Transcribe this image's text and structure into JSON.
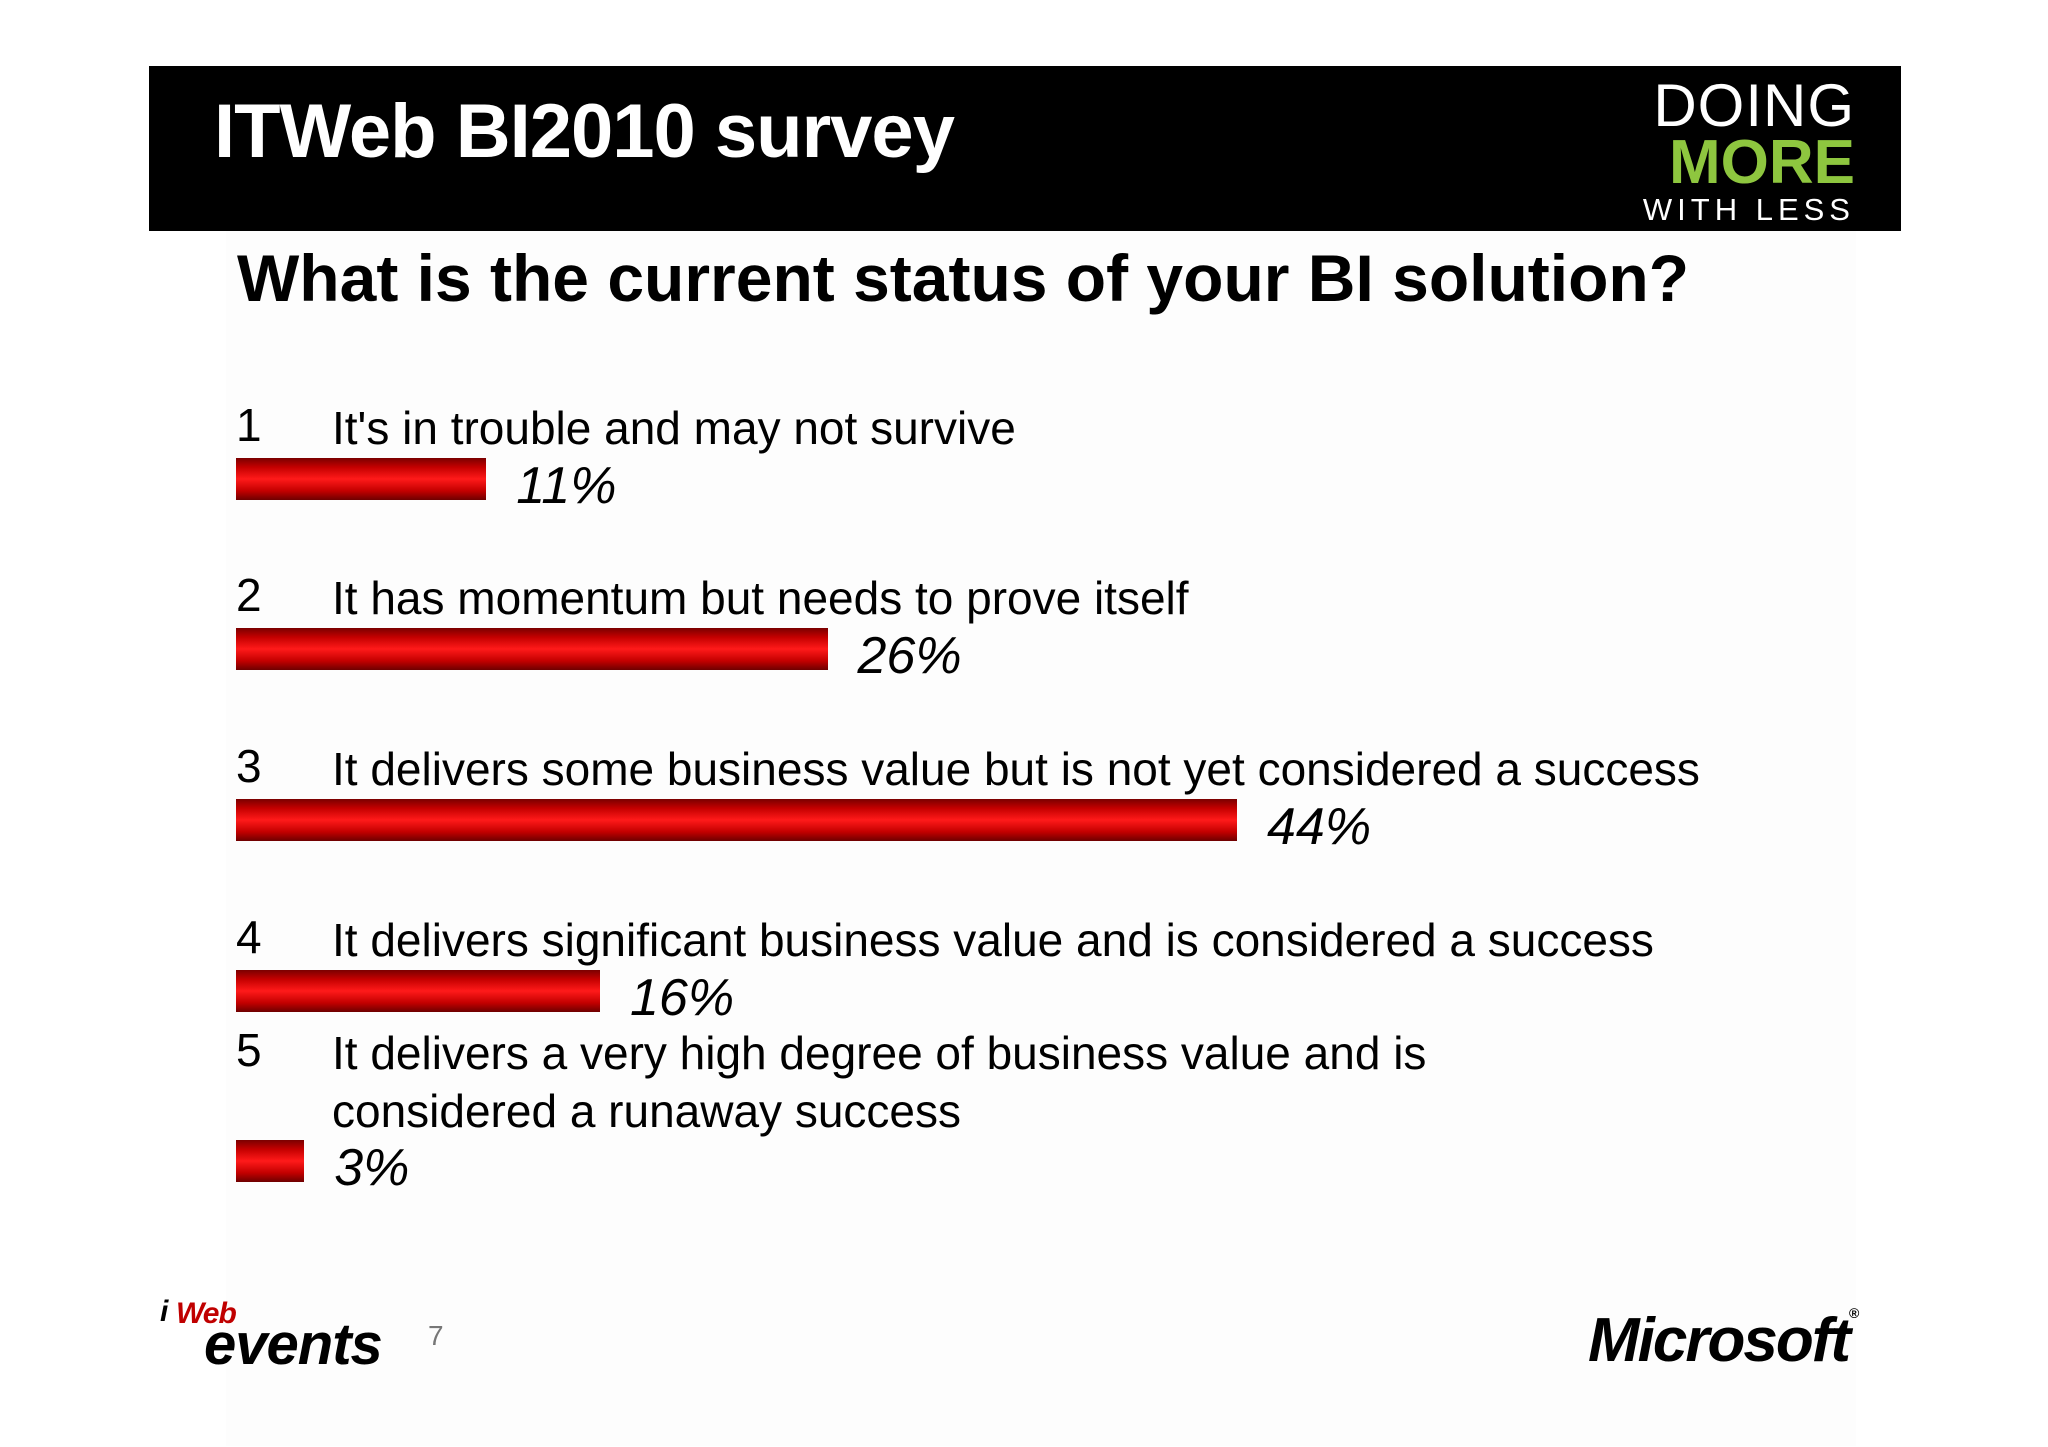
{
  "header": {
    "title": "ITWeb BI2010 survey",
    "logo": {
      "line1": "DOING",
      "line2": "MORE",
      "line3": "WITH LESS"
    }
  },
  "footer": {
    "itweb_logo": {
      "i": "i",
      "web": "Web",
      "events": "events"
    },
    "page_number": "7",
    "microsoft_logo": "Microsoft",
    "registered_mark": "®"
  },
  "colors": {
    "bar": "#e00000",
    "logo_green": "#8ec63f"
  },
  "chart_data": {
    "type": "bar",
    "title": "What is the current status of your BI solution?",
    "orientation": "horizontal",
    "categories": [
      "It's in trouble and may not survive",
      "It has momentum but needs to prove itself",
      "It delivers some business value but is not yet considered a success",
      "It delivers significant business value and is considered a success",
      "It delivers a very high degree of business value and is considered a runaway success"
    ],
    "numbers": [
      "1",
      "2",
      "3",
      "4",
      "5"
    ],
    "values": [
      11,
      26,
      44,
      16,
      3
    ],
    "value_labels": [
      "11%",
      "26%",
      "44%",
      "16%",
      "3%"
    ],
    "unit": "%",
    "grid": false
  }
}
